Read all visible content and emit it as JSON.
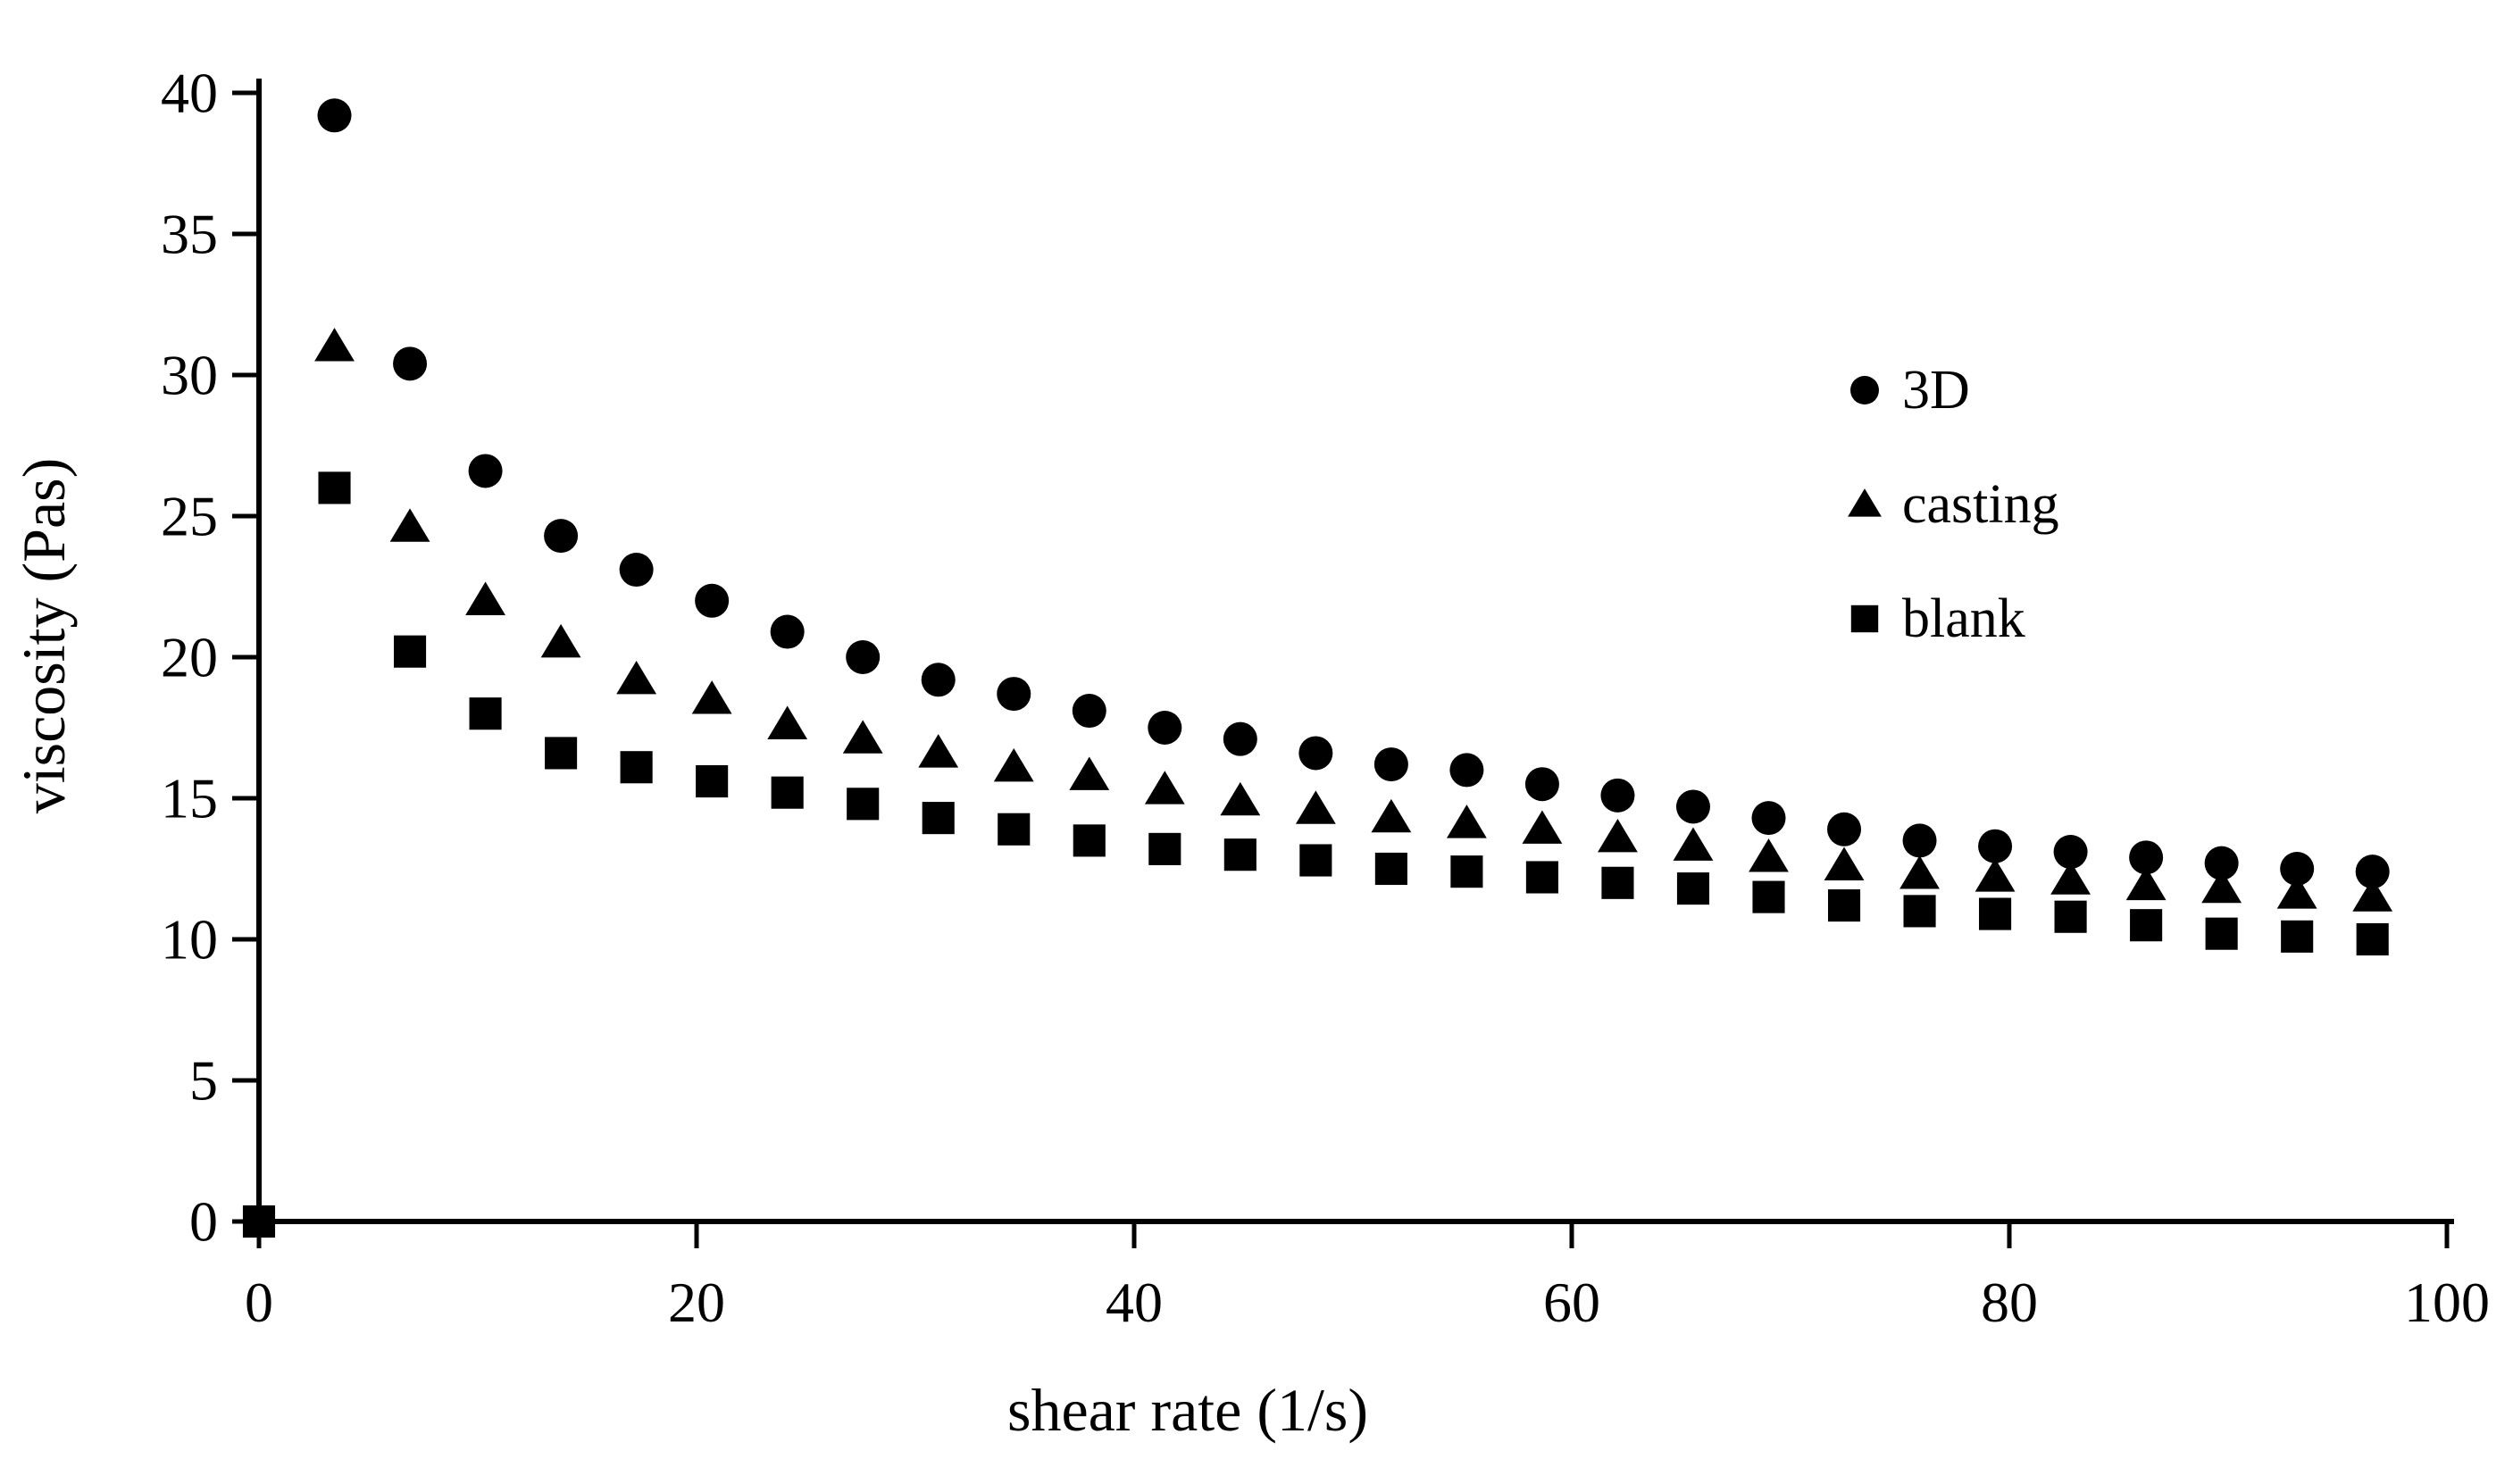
{
  "chart_data": {
    "type": "scatter",
    "title": "",
    "xlabel": "shear rate (1/s)",
    "ylabel": "viscosity (Pas)",
    "xlim": [
      0,
      100
    ],
    "ylim": [
      0,
      40
    ],
    "xticks": [
      0,
      20,
      40,
      60,
      80,
      100
    ],
    "yticks": [
      0,
      5,
      10,
      15,
      20,
      25,
      30,
      35,
      40
    ],
    "grid": false,
    "legend_position": "inside-right",
    "marker_color": "#000000",
    "background_color": "#ffffff",
    "series": [
      {
        "name": "3D",
        "marker": "circle",
        "color": "#000000",
        "x": [
          3.45,
          6.9,
          10.35,
          13.8,
          17.25,
          20.7,
          24.15,
          27.6,
          31.05,
          34.5,
          37.95,
          41.4,
          44.85,
          48.3,
          51.75,
          55.2,
          58.65,
          62.1,
          65.55,
          69,
          72.45,
          75.9,
          79.35,
          82.8,
          86.25,
          89.7,
          93.15,
          96.6
        ],
        "y": [
          39.2,
          30.4,
          26.6,
          24.3,
          23.1,
          22.0,
          20.9,
          20.0,
          19.2,
          18.7,
          18.1,
          17.5,
          17.1,
          16.6,
          16.2,
          16.0,
          15.5,
          15.1,
          14.7,
          14.3,
          13.9,
          13.5,
          13.3,
          13.1,
          12.9,
          12.7,
          12.5,
          12.4
        ]
      },
      {
        "name": "casting",
        "marker": "triangle",
        "color": "#000000",
        "x": [
          3.45,
          6.9,
          10.35,
          13.8,
          17.25,
          20.7,
          24.15,
          27.6,
          31.05,
          34.5,
          37.95,
          41.4,
          44.85,
          48.3,
          51.75,
          55.2,
          58.65,
          62.1,
          65.55,
          69,
          72.45,
          75.9,
          79.35,
          82.8,
          86.25,
          89.7,
          93.15,
          96.6
        ],
        "y": [
          31.0,
          24.6,
          22.0,
          20.5,
          19.2,
          18.5,
          17.6,
          17.1,
          16.6,
          16.1,
          15.8,
          15.3,
          14.9,
          14.6,
          14.3,
          14.1,
          13.9,
          13.6,
          13.3,
          12.9,
          12.6,
          12.3,
          12.2,
          12.1,
          11.9,
          11.8,
          11.6,
          11.5
        ]
      },
      {
        "name": "blank",
        "marker": "square",
        "color": "#000000",
        "x": [
          0,
          3.45,
          6.9,
          10.35,
          13.8,
          17.25,
          20.7,
          24.15,
          27.6,
          31.05,
          34.5,
          37.95,
          41.4,
          44.85,
          48.3,
          51.75,
          55.2,
          58.65,
          62.1,
          65.55,
          69,
          72.45,
          75.9,
          79.35,
          82.8,
          86.25,
          89.7,
          93.15,
          96.6
        ],
        "y": [
          0,
          26.0,
          20.2,
          18.0,
          16.6,
          16.1,
          15.6,
          15.2,
          14.8,
          14.3,
          13.9,
          13.5,
          13.2,
          13.0,
          12.8,
          12.5,
          12.4,
          12.2,
          12.0,
          11.8,
          11.5,
          11.2,
          11.0,
          10.9,
          10.8,
          10.5,
          10.2,
          10.1,
          10.0
        ]
      }
    ],
    "legend": {
      "items": [
        {
          "label": "3D",
          "marker": "circle-icon"
        },
        {
          "label": "casting",
          "marker": "triangle-icon"
        },
        {
          "label": "blank",
          "marker": "square-icon"
        }
      ]
    }
  }
}
